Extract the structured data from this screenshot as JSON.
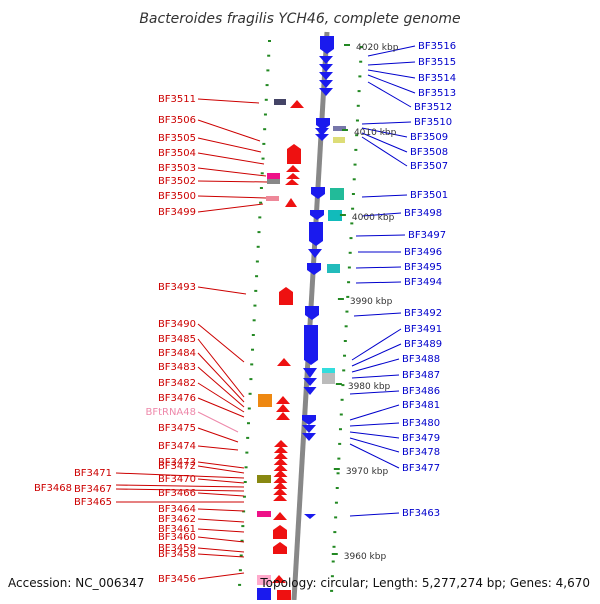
{
  "title": "Bacteroides fragilis YCH46, complete genome",
  "footer": {
    "accession": "Accession: NC_006347",
    "info": "Topology: circular; Length: 5,277,274 bp; Genes: 4,670"
  },
  "colors": {
    "left_label": "#cc0000",
    "right_label": "#0000cc",
    "trna_label": "#ee88aa",
    "tick": "#228822",
    "axis": "#888888"
  },
  "scale_labels": [
    "4020 kbp",
    "4010 kbp",
    "4000 kbp",
    "3990 kbp",
    "3980 kbp",
    "3970 kbp",
    "3960 kbp"
  ],
  "left_labels": [
    {
      "name": "BF3511"
    },
    {
      "name": "BF3506"
    },
    {
      "name": "BF3505"
    },
    {
      "name": "BF3504"
    },
    {
      "name": "BF3503"
    },
    {
      "name": "BF3502"
    },
    {
      "name": "BF3500"
    },
    {
      "name": "BF3499"
    },
    {
      "name": "BF3493"
    },
    {
      "name": "BF3490"
    },
    {
      "name": "BF3485"
    },
    {
      "name": "BF3484"
    },
    {
      "name": "BF3483"
    },
    {
      "name": "BF3482"
    },
    {
      "name": "BF3476"
    },
    {
      "name": "BFtRNA48",
      "trna": true
    },
    {
      "name": "BF3475"
    },
    {
      "name": "BF3474"
    },
    {
      "name": "BF3473"
    },
    {
      "name": "BF3472"
    },
    {
      "name": "BF3471"
    },
    {
      "name": "BF3470"
    },
    {
      "name": "BF3468"
    },
    {
      "name": "BF3467"
    },
    {
      "name": "BF3466"
    },
    {
      "name": "BF3465"
    },
    {
      "name": "BF3464"
    },
    {
      "name": "BF3462"
    },
    {
      "name": "BF3461"
    },
    {
      "name": "BF3460"
    },
    {
      "name": "BF3459"
    },
    {
      "name": "BF3458"
    },
    {
      "name": "BF3456"
    }
  ],
  "right_labels": [
    {
      "name": "BF3516"
    },
    {
      "name": "BF3515"
    },
    {
      "name": "BF3514"
    },
    {
      "name": "BF3513"
    },
    {
      "name": "BF3512"
    },
    {
      "name": "BF3510"
    },
    {
      "name": "BF3509"
    },
    {
      "name": "BF3508"
    },
    {
      "name": "BF3507"
    },
    {
      "name": "BF3501"
    },
    {
      "name": "BF3498"
    },
    {
      "name": "BF3497"
    },
    {
      "name": "BF3496"
    },
    {
      "name": "BF3495"
    },
    {
      "name": "BF3494"
    },
    {
      "name": "BF3492"
    },
    {
      "name": "BF3491"
    },
    {
      "name": "BF3489"
    },
    {
      "name": "BF3488"
    },
    {
      "name": "BF3487"
    },
    {
      "name": "BF3486"
    },
    {
      "name": "BF3481"
    },
    {
      "name": "BF3480"
    },
    {
      "name": "BF3479"
    },
    {
      "name": "BF3478"
    },
    {
      "name": "BF3477"
    },
    {
      "name": "BF3463"
    }
  ]
}
